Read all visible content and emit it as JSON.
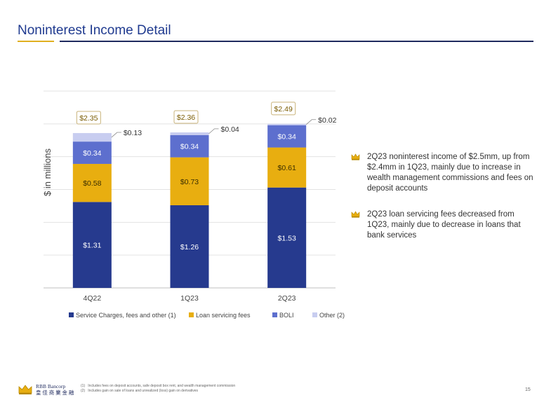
{
  "header": {
    "title": "Noninterest Income Detail"
  },
  "chart_data": {
    "type": "bar",
    "stacked": true,
    "categories": [
      "4Q22",
      "1Q23",
      "2Q23"
    ],
    "ylabel": "$ in millions",
    "ylim": [
      0,
      3.0
    ],
    "grid": true,
    "legend_position": "bottom",
    "series": [
      {
        "name": "Service Charges, fees and other (1)",
        "values": [
          1.31,
          1.26,
          1.53
        ],
        "labels": [
          "$1.31",
          "$1.26",
          "$1.53"
        ],
        "color": "#263a8e"
      },
      {
        "name": "Loan servicing fees",
        "values": [
          0.58,
          0.73,
          0.61
        ],
        "labels": [
          "$0.58",
          "$0.73",
          "$0.61"
        ],
        "color": "#e8ae10"
      },
      {
        "name": "BOLI",
        "values": [
          0.34,
          0.34,
          0.34
        ],
        "labels": [
          "$0.34",
          "$0.34",
          "$0.34"
        ],
        "color": "#5d6fce"
      },
      {
        "name": "Other (2)",
        "values": [
          0.13,
          0.04,
          0.02
        ],
        "labels": [
          "$0.13",
          "$0.04",
          "$0.02"
        ],
        "color": "#c8cdf0"
      }
    ],
    "totals": [
      "$2.35",
      "$2.36",
      "$2.49"
    ]
  },
  "bullets": [
    "2Q23 noninterest income of $2.5mm, up from $2.4mm in 1Q23, mainly due to increase in wealth management commissions and fees on deposit accounts",
    "2Q23 loan servicing fees decreased from 1Q23, mainly due to decrease in loans that bank services"
  ],
  "footer": {
    "logo_line1": "RBB Bancorp",
    "logo_line2": "皇 佳 商 業 金 融",
    "notes": [
      {
        "num": "(1)",
        "text": "Includes fees on deposit accounts, safe deposit box rent, and wealth management commission"
      },
      {
        "num": "(2)",
        "text": "Includes gain on sale of loans and unrealized (loss) gain on derivatives"
      }
    ],
    "page_number": "15"
  },
  "colors": {
    "title": "#1f3a8f",
    "accent_gold": "#e0b020",
    "navy": "#1f2a5e"
  }
}
